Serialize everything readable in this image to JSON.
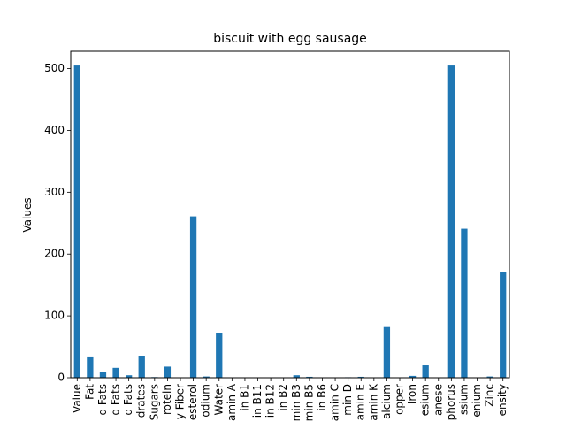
{
  "chart_data": {
    "type": "bar",
    "title": "biscuit with egg sausage",
    "xlabel": "",
    "ylabel": "Values",
    "ylim": [
      0,
      528
    ],
    "yticks": [
      0,
      100,
      200,
      300,
      400,
      500
    ],
    "grid": false,
    "legend": "none",
    "bar_color": "#1f77b4",
    "categories": [
      "Value",
      "Fat",
      "d Fats",
      "d Fats",
      "d Fats",
      "drates",
      "Sugars",
      "rotein",
      "y Fiber",
      "esterol",
      "odium",
      "Water",
      "amin A",
      "in B1",
      "in B11",
      "in B12",
      "in B2",
      "min B3",
      "min B5",
      "in B6",
      "amin C",
      "min D",
      "amin E",
      "amin K",
      "alcium",
      "opper",
      "Iron",
      "esium",
      "anese",
      "phorus",
      "ssium",
      "enium",
      "Zinc",
      "ensity"
    ],
    "values": [
      505,
      33,
      10,
      16,
      4,
      35,
      1,
      18,
      0.5,
      261,
      2,
      72,
      0.2,
      0.3,
      0.1,
      0.4,
      0.5,
      4,
      1.5,
      0.2,
      0,
      0.8,
      1.5,
      0.5,
      82,
      0.3,
      3,
      20,
      0.3,
      505,
      241,
      0.2,
      2,
      171
    ]
  }
}
